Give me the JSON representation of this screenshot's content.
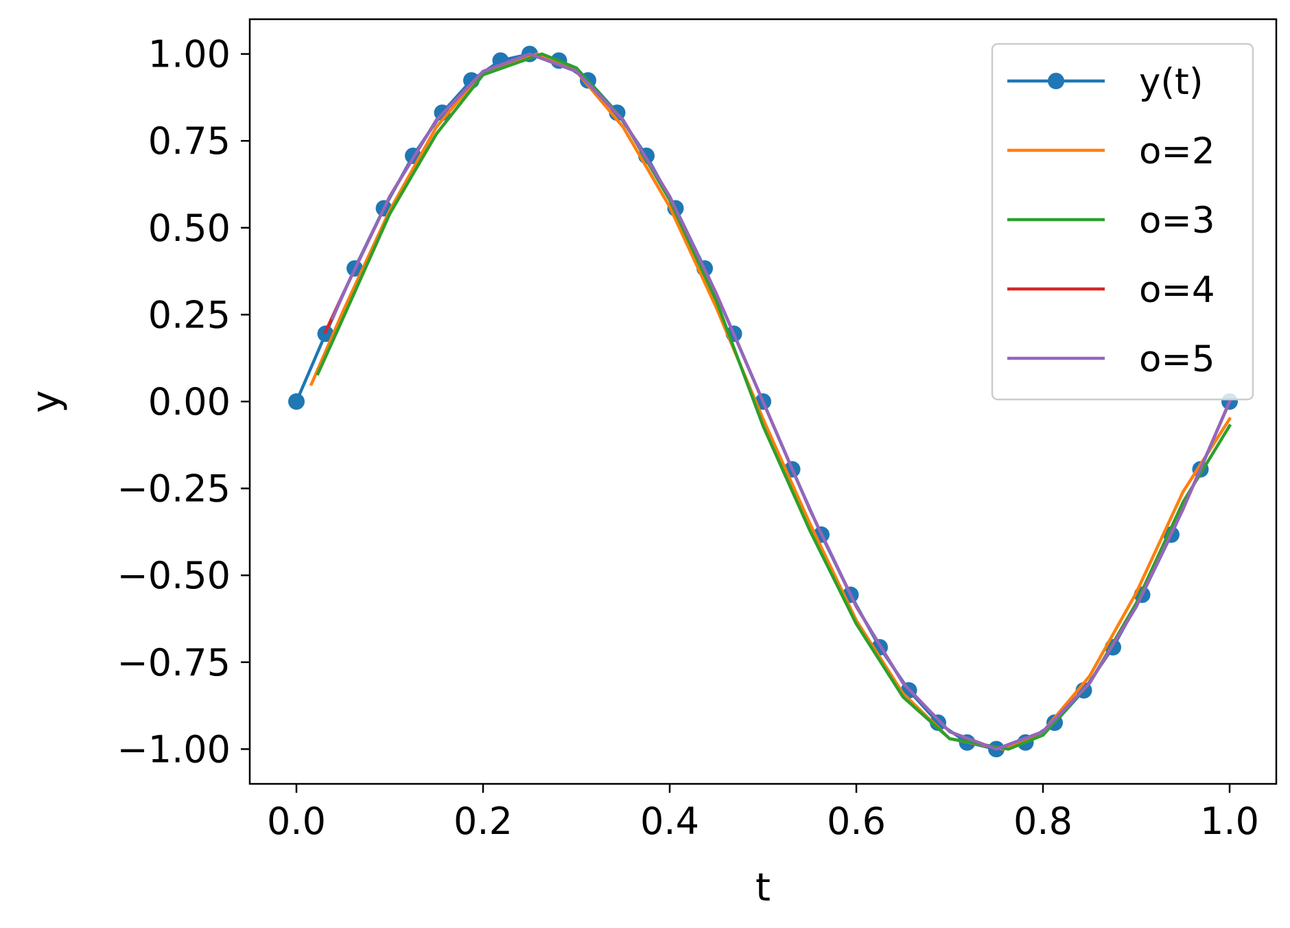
{
  "chart_data": {
    "type": "line",
    "title": "",
    "xlabel": "t",
    "ylabel": "y",
    "xlim": [
      -0.05,
      1.05
    ],
    "ylim": [
      -1.1,
      1.1
    ],
    "x_ticks": [
      0.0,
      0.2,
      0.4,
      0.6,
      0.8,
      1.0
    ],
    "x_tick_labels": [
      "0.0",
      "0.2",
      "0.4",
      "0.6",
      "0.8",
      "1.0"
    ],
    "y_ticks": [
      1.0,
      0.75,
      0.5,
      0.25,
      0.0,
      -0.25,
      -0.5,
      -0.75,
      -1.0
    ],
    "y_tick_labels": [
      "1.00",
      "0.75",
      "0.50",
      "0.25",
      "0.00",
      "−0.25",
      "−0.50",
      "−0.75",
      "−1.00"
    ],
    "grid": false,
    "legend_position": "top-right",
    "series": [
      {
        "name": "y(t)",
        "color": "#1f77b4",
        "marker": "circle",
        "x": [
          0.0,
          0.03125,
          0.0625,
          0.09375,
          0.125,
          0.15625,
          0.1875,
          0.21875,
          0.25,
          0.28125,
          0.3125,
          0.34375,
          0.375,
          0.40625,
          0.4375,
          0.46875,
          0.5,
          0.53125,
          0.5625,
          0.59375,
          0.625,
          0.65625,
          0.6875,
          0.71875,
          0.75,
          0.78125,
          0.8125,
          0.84375,
          0.875,
          0.90625,
          0.9375,
          0.96875,
          1.0
        ],
        "y": [
          0.0,
          0.195,
          0.383,
          0.556,
          0.707,
          0.831,
          0.924,
          0.981,
          1.0,
          0.981,
          0.924,
          0.831,
          0.707,
          0.556,
          0.383,
          0.195,
          0.0,
          -0.195,
          -0.383,
          -0.556,
          -0.707,
          -0.831,
          -0.924,
          -0.981,
          -1.0,
          -0.981,
          -0.924,
          -0.831,
          -0.707,
          -0.556,
          -0.383,
          -0.195,
          0.0
        ]
      },
      {
        "name": "o=2",
        "color": "#ff7f0e",
        "x": [
          0.016,
          0.05,
          0.1,
          0.15,
          0.2,
          0.258,
          0.3,
          0.35,
          0.4,
          0.45,
          0.5,
          0.55,
          0.6,
          0.65,
          0.7,
          0.758,
          0.8,
          0.85,
          0.9,
          0.95,
          1.0
        ],
        "y": [
          0.05,
          0.26,
          0.55,
          0.79,
          0.95,
          1.0,
          0.95,
          0.79,
          0.56,
          0.27,
          -0.05,
          -0.35,
          -0.63,
          -0.84,
          -0.97,
          -1.0,
          -0.95,
          -0.79,
          -0.55,
          -0.26,
          -0.05
        ]
      },
      {
        "name": "o=3",
        "color": "#2ca02c",
        "x": [
          0.023,
          0.05,
          0.1,
          0.15,
          0.2,
          0.263,
          0.3,
          0.35,
          0.4,
          0.45,
          0.5,
          0.55,
          0.6,
          0.65,
          0.7,
          0.763,
          0.8,
          0.85,
          0.9,
          0.95,
          1.0
        ],
        "y": [
          0.08,
          0.24,
          0.54,
          0.77,
          0.94,
          1.0,
          0.96,
          0.81,
          0.58,
          0.29,
          -0.07,
          -0.37,
          -0.64,
          -0.85,
          -0.97,
          -1.0,
          -0.96,
          -0.81,
          -0.58,
          -0.29,
          -0.07
        ]
      },
      {
        "name": "o=4",
        "color": "#d62728",
        "x": [
          0.031,
          0.05,
          0.1,
          0.15,
          0.2,
          0.25,
          0.3,
          0.35,
          0.4,
          0.45,
          0.5,
          0.55,
          0.6,
          0.65,
          0.7,
          0.75,
          0.8,
          0.85,
          0.9,
          0.95,
          1.0
        ],
        "y": [
          0.2,
          0.31,
          0.59,
          0.81,
          0.95,
          1.0,
          0.95,
          0.81,
          0.59,
          0.31,
          0.0,
          -0.31,
          -0.59,
          -0.81,
          -0.95,
          -1.0,
          -0.95,
          -0.81,
          -0.59,
          -0.31,
          0.0
        ]
      },
      {
        "name": "o=5",
        "color": "#9467bd",
        "x": [
          0.039,
          0.05,
          0.1,
          0.15,
          0.2,
          0.25,
          0.3,
          0.35,
          0.4,
          0.45,
          0.5,
          0.55,
          0.6,
          0.65,
          0.7,
          0.75,
          0.8,
          0.85,
          0.9,
          0.95,
          1.0
        ],
        "y": [
          0.24,
          0.31,
          0.59,
          0.81,
          0.95,
          1.0,
          0.95,
          0.81,
          0.59,
          0.31,
          0.0,
          -0.31,
          -0.59,
          -0.81,
          -0.95,
          -1.0,
          -0.95,
          -0.81,
          -0.59,
          -0.31,
          0.0
        ]
      }
    ]
  }
}
